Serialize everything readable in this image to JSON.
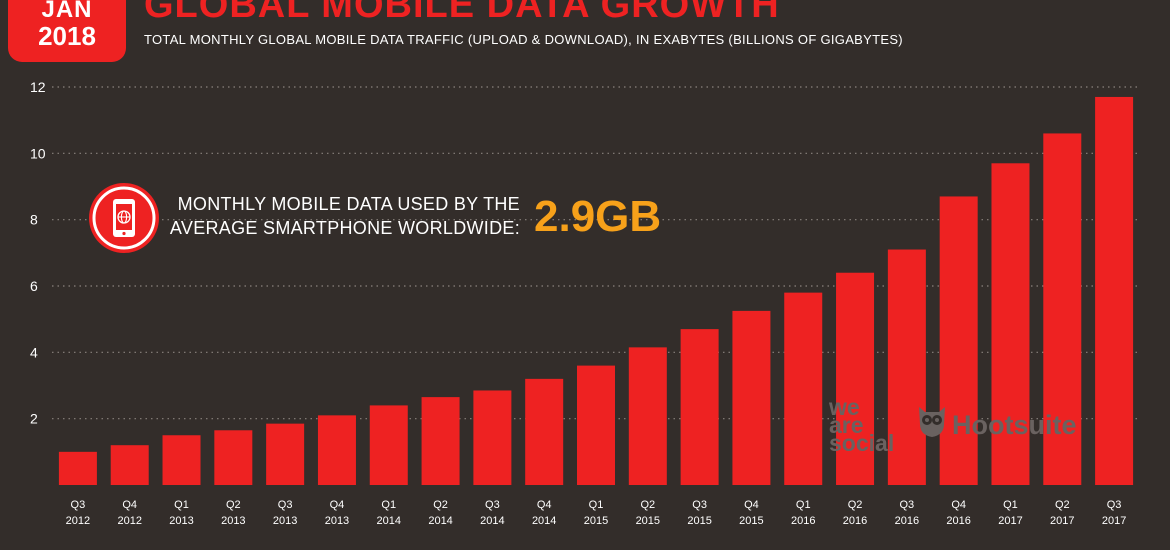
{
  "header": {
    "badge_month": "JAN",
    "badge_year": "2018",
    "title": "GLOBAL MOBILE DATA GROWTH",
    "subtitle": "TOTAL MONTHLY GLOBAL MOBILE DATA TRAFFIC (UPLOAD & DOWNLOAD), IN EXABYTES (BILLIONS OF GIGABYTES)"
  },
  "callout": {
    "line1": "MONTHLY MOBILE DATA USED BY THE",
    "line2": "AVERAGE SMARTPHONE WORLDWIDE:",
    "value": "2.9GB",
    "icon": "smartphone-globe-icon"
  },
  "branding": {
    "was_line1": "we",
    "was_line2": "are",
    "was_line3": "social",
    "hootsuite": "Hootsuite",
    "owl_icon": "hootsuite-owl-icon"
  },
  "colors": {
    "background": "#332d2a",
    "bar": "#ee2222",
    "accent_value": "#f7a11a",
    "text": "#ffffff",
    "grid": "#8a827e",
    "logo": "#6a6260"
  },
  "chart_data": {
    "type": "bar",
    "title": "GLOBAL MOBILE DATA GROWTH",
    "subtitle": "TOTAL MONTHLY GLOBAL MOBILE DATA TRAFFIC (UPLOAD & DOWNLOAD), IN EXABYTES (BILLIONS OF GIGABYTES)",
    "categories": [
      [
        "Q3",
        "2012"
      ],
      [
        "Q4",
        "2012"
      ],
      [
        "Q1",
        "2013"
      ],
      [
        "Q2",
        "2013"
      ],
      [
        "Q3",
        "2013"
      ],
      [
        "Q4",
        "2013"
      ],
      [
        "Q1",
        "2014"
      ],
      [
        "Q2",
        "2014"
      ],
      [
        "Q3",
        "2014"
      ],
      [
        "Q4",
        "2014"
      ],
      [
        "Q1",
        "2015"
      ],
      [
        "Q2",
        "2015"
      ],
      [
        "Q3",
        "2015"
      ],
      [
        "Q4",
        "2015"
      ],
      [
        "Q1",
        "2016"
      ],
      [
        "Q2",
        "2016"
      ],
      [
        "Q3",
        "2016"
      ],
      [
        "Q4",
        "2016"
      ],
      [
        "Q1",
        "2017"
      ],
      [
        "Q2",
        "2017"
      ],
      [
        "Q3",
        "2017"
      ]
    ],
    "values": [
      1.0,
      1.2,
      1.5,
      1.65,
      1.85,
      2.1,
      2.4,
      2.65,
      2.85,
      3.2,
      3.6,
      4.15,
      4.7,
      5.25,
      5.8,
      6.4,
      7.1,
      8.7,
      9.7,
      10.6,
      11.7
    ],
    "ylim": [
      0,
      12
    ],
    "yticks": [
      2,
      4,
      6,
      8,
      10,
      12
    ],
    "grid": true,
    "grid_style": "dotted"
  }
}
